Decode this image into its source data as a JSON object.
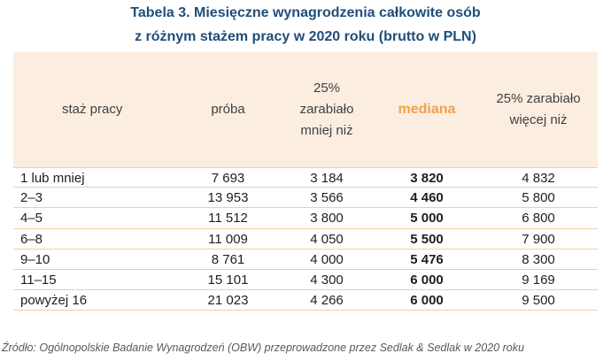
{
  "title": {
    "line1": "Tabela 3. Miesięczne wynagrodzenia całkowite osób",
    "line2": "z różnym stażem pracy w 2020 roku (brutto w PLN)"
  },
  "table": {
    "headers": {
      "staz": "staż pracy",
      "proba": "próba",
      "p25_line1": "25%",
      "p25_line2": "zarabiało",
      "p25_line3": "mniej niż",
      "mediana": "mediana",
      "p75_line1": "25% zarabiało",
      "p75_line2": "więcej niż"
    },
    "rows": [
      {
        "staz": "1 lub mniej",
        "proba": "7 693",
        "p25": "3 184",
        "mediana": "3 820",
        "p75": "4 832"
      },
      {
        "staz": "2–3",
        "proba": "13 953",
        "p25": "3 566",
        "mediana": "4 460",
        "p75": "5 800"
      },
      {
        "staz": "4–5",
        "proba": "11 512",
        "p25": "3 800",
        "mediana": "5 000",
        "p75": "6 800"
      },
      {
        "staz": "6–8",
        "proba": "11 009",
        "p25": "4 050",
        "mediana": "5 500",
        "p75": "7 900"
      },
      {
        "staz": "9–10",
        "proba": "8 761",
        "p25": "4 000",
        "mediana": "5 476",
        "p75": "8 300"
      },
      {
        "staz": "11–15",
        "proba": "15 101",
        "p25": "4 300",
        "mediana": "6 000",
        "p75": "9 169"
      },
      {
        "staz": "powyżej 16",
        "proba": "21 023",
        "p25": "4 266",
        "mediana": "6 000",
        "p75": "9 500"
      }
    ]
  },
  "source": "Źródło: Ogólnopolskie Badanie Wynagrodzeń (OBW) przeprowadzone przez Sedlak & Sedlak w 2020 roku",
  "colors": {
    "title": "#1f4e79",
    "header_bg": "#fbeee1",
    "mediana_header": "#f5a04a",
    "row_border": "#f3cda7"
  }
}
